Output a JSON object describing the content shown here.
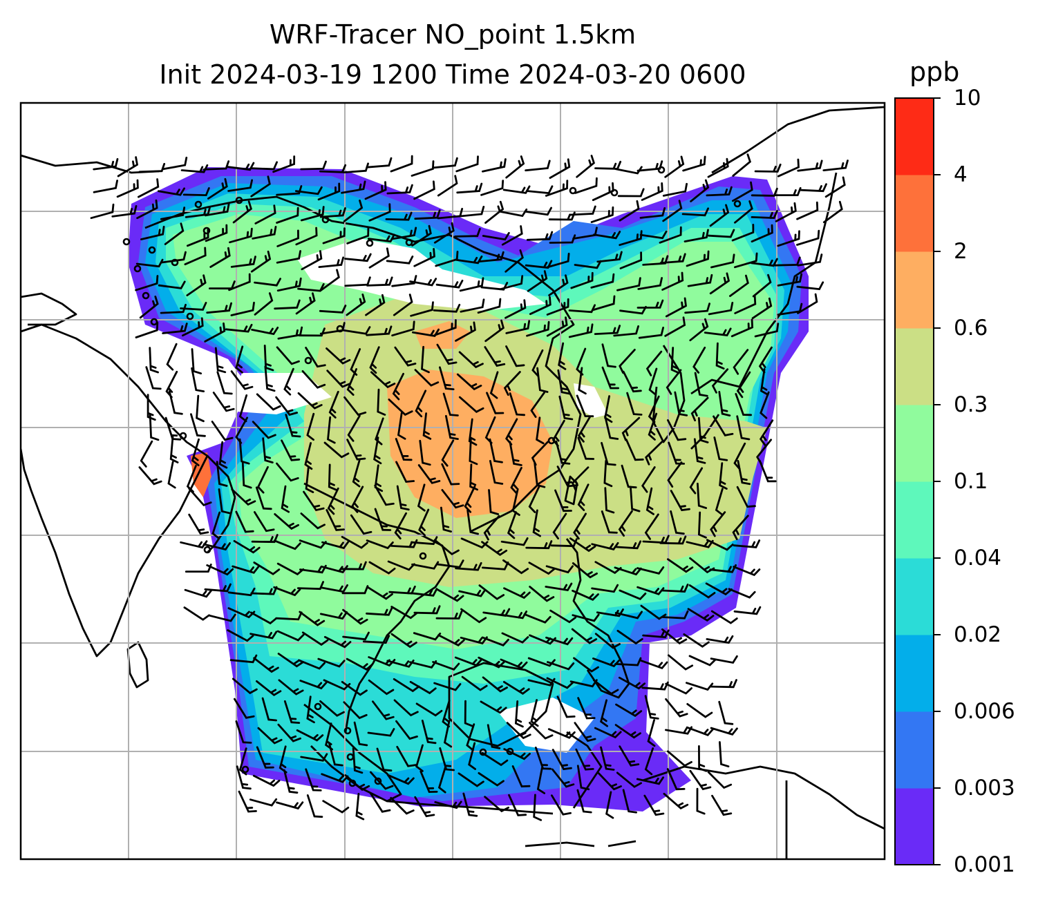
{
  "title": {
    "line1": "WRF-Tracer NO_point 1.5km",
    "line2": "Init 2024-03-19 1200 Time 2024-03-20 0600"
  },
  "colorbar": {
    "unit": "ppb",
    "levels": [
      "0.001",
      "0.003",
      "0.006",
      "0.02",
      "0.04",
      "0.1",
      "0.3",
      "0.6",
      "2",
      "4",
      "10"
    ],
    "colors": [
      "#6a2bf7",
      "#3377f3",
      "#03aeea",
      "#2bdcd7",
      "#5ef8bb",
      "#90fb9d",
      "#cbdf85",
      "#feae61",
      "#fe713a",
      "#fe2b16"
    ]
  },
  "map": {
    "grid": true,
    "grid_color": "#b0b0b0",
    "coastline_color": "#000000",
    "station_marker": "circle",
    "wind_symbol": "wind-barb"
  }
}
